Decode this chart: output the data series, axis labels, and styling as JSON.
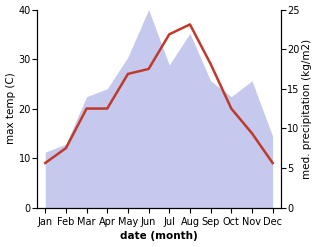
{
  "months": [
    "Jan",
    "Feb",
    "Mar",
    "Apr",
    "May",
    "Jun",
    "Jul",
    "Aug",
    "Sep",
    "Oct",
    "Nov",
    "Dec"
  ],
  "month_indices": [
    0,
    1,
    2,
    3,
    4,
    5,
    6,
    7,
    8,
    9,
    10,
    11
  ],
  "temperature": [
    9,
    12,
    20,
    20,
    27,
    28,
    35,
    37,
    29,
    20,
    15,
    9
  ],
  "precipitation": [
    7,
    8,
    14,
    15,
    19,
    25,
    18,
    22,
    16,
    14,
    16,
    9
  ],
  "temp_color": "#c0392b",
  "precip_fill_color": "#b0b8e8",
  "precip_fill_alpha": 0.75,
  "left_ylabel": "max temp (C)",
  "right_ylabel": "med. precipitation (kg/m2)",
  "xlabel": "date (month)",
  "left_ylim": [
    0,
    40
  ],
  "right_ylim": [
    0,
    25
  ],
  "left_yticks": [
    0,
    10,
    20,
    30,
    40
  ],
  "right_yticks": [
    0,
    5,
    10,
    15,
    20,
    25
  ],
  "bg_color": "#ffffff",
  "label_fontsize": 7.5,
  "tick_fontsize": 7,
  "line_width": 1.8
}
